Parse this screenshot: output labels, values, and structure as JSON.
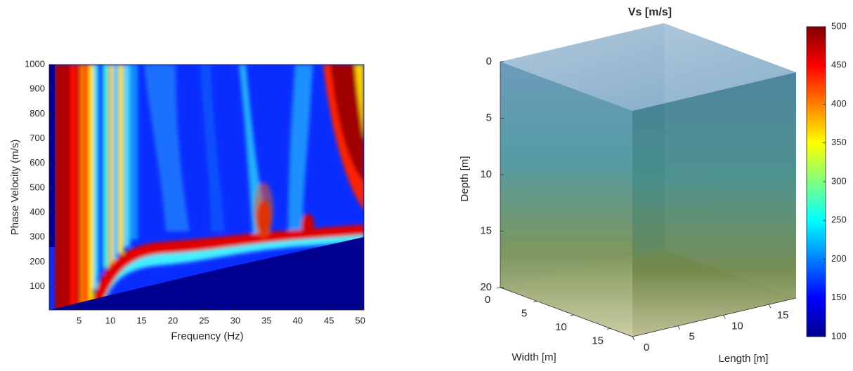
{
  "chart_data": [
    {
      "type": "heatmap",
      "xlabel": "Frequency (Hz)",
      "ylabel": "Phase Velocity (m/s)",
      "xlim": [
        0.2,
        50.6
      ],
      "ylim": [
        5,
        1000
      ],
      "xticks": [
        5,
        10,
        15,
        20,
        25,
        30,
        35,
        40,
        45,
        50
      ],
      "yticks": [
        100,
        200,
        300,
        400,
        500,
        600,
        700,
        800,
        900,
        1000
      ]
    },
    {
      "type": "volume3d",
      "title": "Vs [m/s]",
      "xlabel": "Length [m]",
      "ylabel": "Width [m]",
      "zlabel": "Depth [m]",
      "xlim": [
        0,
        18
      ],
      "ylim": [
        0,
        18
      ],
      "zlim": [
        0,
        20
      ],
      "xticks": [
        0,
        5,
        10,
        15
      ],
      "yticks": [
        0,
        5,
        10,
        15
      ],
      "zticks": [
        0,
        5,
        10,
        15,
        20
      ],
      "colorbar": {
        "clim": [
          100,
          500
        ],
        "ticks": [
          100,
          150,
          200,
          250,
          300,
          350,
          400,
          450,
          500
        ],
        "colormap": "jet"
      }
    }
  ]
}
